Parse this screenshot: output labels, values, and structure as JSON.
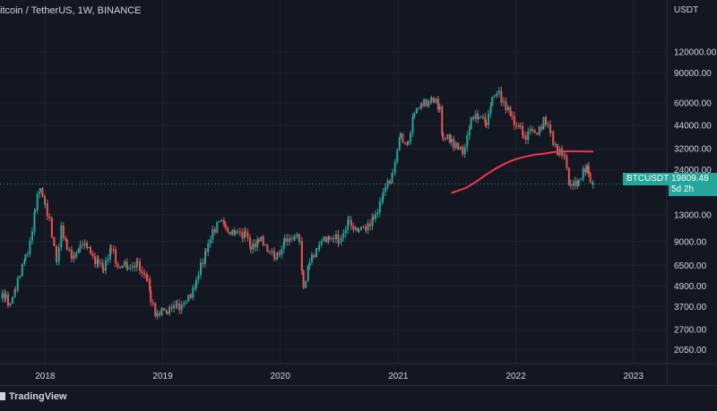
{
  "header": {
    "symbol_title": "itcoin / TetherUS, 1W, BINANCE"
  },
  "price_scale": {
    "currency": "USDT"
  },
  "current_price": {
    "symbol": "BTCUSDT",
    "value": "19809.48",
    "countdown": "5d 2h"
  },
  "footer": {
    "brand": "TradingView"
  },
  "colors": {
    "background": "#131722",
    "up": "#26a69a",
    "down": "#ef5350",
    "ma": "#f23645",
    "grid": "#1e222d"
  },
  "chart_data": {
    "type": "line",
    "title": "",
    "y_scale": "log",
    "ylim": [
      1850,
      150000
    ],
    "xlim": [
      "2017-08-14",
      "2023-03-01"
    ],
    "grid": true,
    "y_tick_labels": [
      "120000.00",
      "90000.00",
      "60000.00",
      "44000.00",
      "32000.00",
      "24000.00",
      "13000.00",
      "9000.00",
      "6500.00",
      "4900.00",
      "3700.00",
      "2700.00",
      "2050.00"
    ],
    "x_tick_labels": [
      "2018",
      "2019",
      "2020",
      "2021",
      "2022",
      "2023"
    ],
    "series": [
      {
        "style": "candlestick",
        "points": [
          [
            "2017-08-14",
            4200
          ],
          [
            "2017-09-01",
            4300
          ],
          [
            "2017-09-15",
            3700
          ],
          [
            "2017-10-01",
            4800
          ],
          [
            "2017-10-15",
            6000
          ],
          [
            "2017-11-01",
            7000
          ],
          [
            "2017-11-15",
            9000
          ],
          [
            "2017-12-01",
            14000
          ],
          [
            "2017-12-17",
            19000
          ],
          [
            "2018-01-01",
            15000
          ],
          [
            "2018-01-15",
            11500
          ],
          [
            "2018-02-06",
            7000
          ],
          [
            "2018-02-20",
            10500
          ],
          [
            "2018-03-10",
            8500
          ],
          [
            "2018-04-01",
            6900
          ],
          [
            "2018-04-20",
            9000
          ],
          [
            "2018-05-15",
            8200
          ],
          [
            "2018-06-15",
            6500
          ],
          [
            "2018-07-01",
            6400
          ],
          [
            "2018-07-25",
            8200
          ],
          [
            "2018-08-15",
            6400
          ],
          [
            "2018-09-15",
            6500
          ],
          [
            "2018-10-15",
            6400
          ],
          [
            "2018-11-15",
            5500
          ],
          [
            "2018-11-25",
            4000
          ],
          [
            "2018-12-15",
            3300
          ],
          [
            "2019-01-15",
            3600
          ],
          [
            "2019-02-15",
            3700
          ],
          [
            "2019-03-15",
            3900
          ],
          [
            "2019-04-15",
            5200
          ],
          [
            "2019-05-15",
            8000
          ],
          [
            "2019-06-26",
            12500
          ],
          [
            "2019-07-15",
            10500
          ],
          [
            "2019-08-15",
            10200
          ],
          [
            "2019-09-15",
            10000
          ],
          [
            "2019-10-01",
            8300
          ],
          [
            "2019-10-26",
            9300
          ],
          [
            "2019-11-15",
            8500
          ],
          [
            "2019-12-15",
            7200
          ],
          [
            "2020-01-15",
            8800
          ],
          [
            "2020-02-15",
            10000
          ],
          [
            "2020-03-01",
            8800
          ],
          [
            "2020-03-13",
            4900
          ],
          [
            "2020-04-01",
            6700
          ],
          [
            "2020-05-01",
            8800
          ],
          [
            "2020-06-01",
            9500
          ],
          [
            "2020-07-01",
            9200
          ],
          [
            "2020-08-01",
            11500
          ],
          [
            "2020-09-01",
            10500
          ],
          [
            "2020-10-15",
            11800
          ],
          [
            "2020-11-15",
            17500
          ],
          [
            "2020-12-15",
            23000
          ],
          [
            "2021-01-08",
            38000
          ],
          [
            "2021-02-01",
            33000
          ],
          [
            "2021-02-20",
            55000
          ],
          [
            "2021-03-15",
            58000
          ],
          [
            "2021-04-14",
            63000
          ],
          [
            "2021-05-10",
            56000
          ],
          [
            "2021-05-20",
            37000
          ],
          [
            "2021-06-15",
            36000
          ],
          [
            "2021-07-20",
            30000
          ],
          [
            "2021-08-15",
            47000
          ],
          [
            "2021-09-07",
            52000
          ],
          [
            "2021-10-01",
            45000
          ],
          [
            "2021-10-20",
            65000
          ],
          [
            "2021-11-10",
            68000
          ],
          [
            "2021-12-01",
            57000
          ],
          [
            "2021-12-20",
            48000
          ],
          [
            "2022-01-15",
            42000
          ],
          [
            "2022-01-25",
            36000
          ],
          [
            "2022-02-15",
            43000
          ],
          [
            "2022-03-01",
            38000
          ],
          [
            "2022-03-28",
            47000
          ],
          [
            "2022-04-20",
            40000
          ],
          [
            "2022-05-10",
            30000
          ],
          [
            "2022-06-01",
            30000
          ],
          [
            "2022-06-15",
            20000
          ],
          [
            "2022-06-20",
            19000
          ],
          [
            "2022-07-15",
            21000
          ],
          [
            "2022-08-10",
            24500
          ],
          [
            "2022-08-15",
            24000
          ],
          [
            "2022-08-20",
            21000
          ],
          [
            "2022-08-29",
            19809
          ]
        ]
      },
      {
        "style": "line",
        "points": [
          [
            "2021-06-15",
            17500
          ],
          [
            "2021-08-01",
            18800
          ],
          [
            "2021-09-01",
            20500
          ],
          [
            "2021-10-01",
            22500
          ],
          [
            "2021-11-01",
            24500
          ],
          [
            "2021-12-01",
            26300
          ],
          [
            "2022-01-01",
            27800
          ],
          [
            "2022-02-01",
            28800
          ],
          [
            "2022-03-01",
            29500
          ],
          [
            "2022-04-01",
            30000
          ],
          [
            "2022-05-01",
            30600
          ],
          [
            "2022-06-01",
            30900
          ],
          [
            "2022-07-01",
            30900
          ],
          [
            "2022-08-29",
            30800
          ]
        ]
      }
    ]
  }
}
